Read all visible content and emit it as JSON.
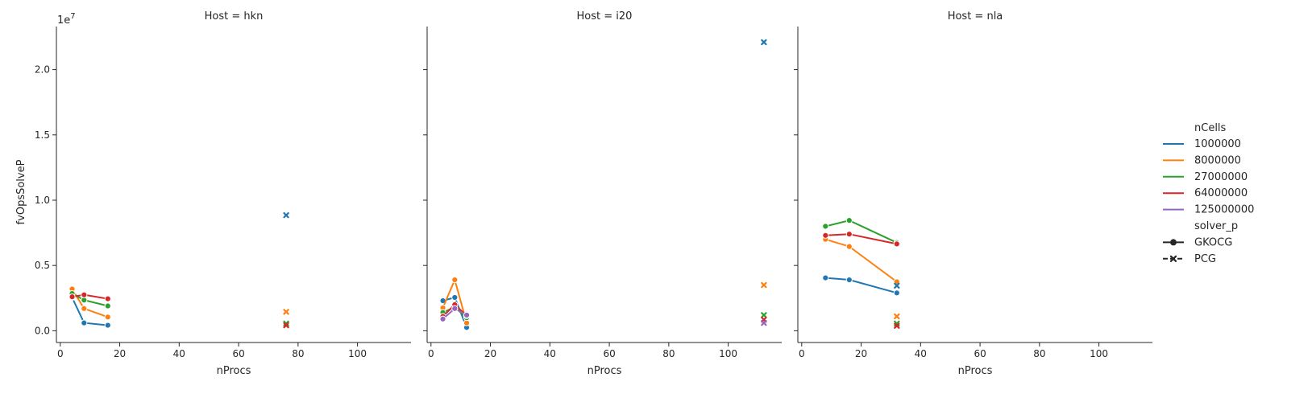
{
  "chart_data": {
    "type": "line",
    "facet_label_prefix": "Host = ",
    "xlabel": "nProcs",
    "ylabel": "fvOpsSolveP",
    "y_offset_text": "1e7",
    "y_scale": 10000000,
    "xlim": [
      -1.3,
      118
    ],
    "ylim": [
      -900000,
      23300000
    ],
    "xticks": [
      0,
      20,
      40,
      60,
      80,
      100
    ],
    "yticks": [
      0,
      5000000,
      10000000,
      15000000,
      20000000
    ],
    "ytick_labels": [
      "0.0",
      "0.5",
      "1.0",
      "1.5",
      "2.0"
    ],
    "legend": {
      "placement": "right",
      "hue_title": "nCells",
      "hue_entries": [
        {
          "label": "1000000",
          "color": "#1f77b4"
        },
        {
          "label": "8000000",
          "color": "#ff7f0e"
        },
        {
          "label": "27000000",
          "color": "#2ca02c"
        },
        {
          "label": "64000000",
          "color": "#d62728"
        },
        {
          "label": "125000000",
          "color": "#9467bd"
        }
      ],
      "style_title": "solver_p",
      "style_entries": [
        {
          "label": "GKOCG",
          "marker": "circle",
          "dash": "solid"
        },
        {
          "label": "PCG",
          "marker": "x",
          "dash": "dashed"
        }
      ]
    },
    "facets": [
      {
        "host": "hkn",
        "series": [
          {
            "ncells": "1000000",
            "solver": "GKOCG",
            "x": [
              4,
              8,
              16
            ],
            "y": [
              2550000,
              600000,
              420000
            ]
          },
          {
            "ncells": "8000000",
            "solver": "GKOCG",
            "x": [
              4,
              8,
              16
            ],
            "y": [
              3200000,
              1700000,
              1050000
            ]
          },
          {
            "ncells": "27000000",
            "solver": "GKOCG",
            "x": [
              4,
              8,
              16
            ],
            "y": [
              2850000,
              2350000,
              1900000
            ]
          },
          {
            "ncells": "64000000",
            "solver": "GKOCG",
            "x": [
              4,
              8,
              16
            ],
            "y": [
              2600000,
              2750000,
              2450000
            ]
          },
          {
            "ncells": "1000000",
            "solver": "PCG",
            "x": [
              76
            ],
            "y": [
              8850000
            ]
          },
          {
            "ncells": "8000000",
            "solver": "PCG",
            "x": [
              76
            ],
            "y": [
              1450000
            ]
          },
          {
            "ncells": "27000000",
            "solver": "PCG",
            "x": [
              76
            ],
            "y": [
              550000
            ]
          },
          {
            "ncells": "64000000",
            "solver": "PCG",
            "x": [
              76
            ],
            "y": [
              420000
            ]
          }
        ]
      },
      {
        "host": "i20",
        "series": [
          {
            "ncells": "1000000",
            "solver": "GKOCG",
            "x": [
              4,
              8,
              12
            ],
            "y": [
              2300000,
              2550000,
              250000
            ]
          },
          {
            "ncells": "8000000",
            "solver": "GKOCG",
            "x": [
              4,
              8,
              12
            ],
            "y": [
              1750000,
              3900000,
              600000
            ]
          },
          {
            "ncells": "27000000",
            "solver": "GKOCG",
            "x": [
              4,
              8,
              12
            ],
            "y": [
              1400000,
              1800000,
              1000000
            ]
          },
          {
            "ncells": "64000000",
            "solver": "GKOCG",
            "x": [
              4,
              8,
              12
            ],
            "y": [
              1100000,
              2000000,
              1150000
            ]
          },
          {
            "ncells": "125000000",
            "solver": "GKOCG",
            "x": [
              4,
              8,
              12
            ],
            "y": [
              900000,
              1700000,
              1200000
            ]
          },
          {
            "ncells": "1000000",
            "solver": "PCG",
            "x": [
              112
            ],
            "y": [
              22100000
            ]
          },
          {
            "ncells": "8000000",
            "solver": "PCG",
            "x": [
              112
            ],
            "y": [
              3500000
            ]
          },
          {
            "ncells": "27000000",
            "solver": "PCG",
            "x": [
              112
            ],
            "y": [
              1200000
            ]
          },
          {
            "ncells": "64000000",
            "solver": "PCG",
            "x": [
              112
            ],
            "y": [
              850000
            ]
          },
          {
            "ncells": "125000000",
            "solver": "PCG",
            "x": [
              112
            ],
            "y": [
              600000
            ]
          }
        ]
      },
      {
        "host": "nla",
        "series": [
          {
            "ncells": "1000000",
            "solver": "GKOCG",
            "x": [
              8,
              16,
              32
            ],
            "y": [
              4050000,
              3900000,
              2900000
            ]
          },
          {
            "ncells": "8000000",
            "solver": "GKOCG",
            "x": [
              8,
              16,
              32
            ],
            "y": [
              7000000,
              6450000,
              3750000
            ]
          },
          {
            "ncells": "27000000",
            "solver": "GKOCG",
            "x": [
              8,
              16,
              32
            ],
            "y": [
              8000000,
              8450000,
              6750000
            ]
          },
          {
            "ncells": "64000000",
            "solver": "GKOCG",
            "x": [
              8,
              16,
              32
            ],
            "y": [
              7300000,
              7400000,
              6650000
            ]
          },
          {
            "ncells": "1000000",
            "solver": "PCG",
            "x": [
              32
            ],
            "y": [
              3450000
            ]
          },
          {
            "ncells": "8000000",
            "solver": "PCG",
            "x": [
              32
            ],
            "y": [
              1100000
            ]
          },
          {
            "ncells": "27000000",
            "solver": "PCG",
            "x": [
              32
            ],
            "y": [
              550000
            ]
          },
          {
            "ncells": "64000000",
            "solver": "PCG",
            "x": [
              32
            ],
            "y": [
              380000
            ]
          }
        ]
      }
    ]
  }
}
